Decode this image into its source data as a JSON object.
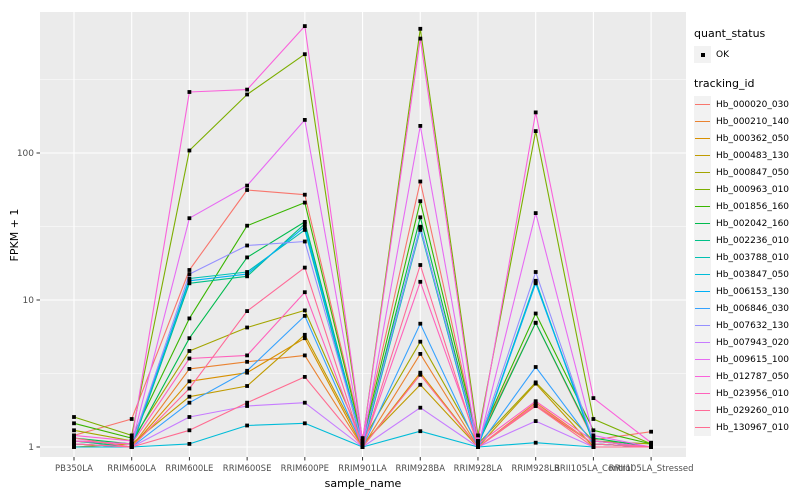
{
  "figure": {
    "background": "#FFFFFF",
    "panel_background": "#EBEBEB",
    "gridline_color": "#FFFFFF",
    "tick_color": "#333333",
    "axis_text_color": "#4D4D4D",
    "point_color": "#000000"
  },
  "chart_data": {
    "type": "line",
    "title": "",
    "xlabel": "sample_name",
    "ylabel": "FPKM + 1",
    "y_scale": "log10",
    "ylim": [
      1,
      750
    ],
    "y_tick_labels": [
      "1",
      "10",
      "100"
    ],
    "y_tick_values": [
      1,
      10,
      100
    ],
    "y_minor_tick_values": [
      3.162,
      31.62,
      316.2
    ],
    "grid": "white major+minor gridlines on grey panel",
    "legend_position": "right",
    "marker": "small black square (quant_status OK)",
    "categories": [
      "PB350LA",
      "RRIM600LA",
      "RRIM600LE",
      "RRIM600SE",
      "RRIM600PE",
      "RRIM901LA",
      "RRIM928BA",
      "RRIM928LA",
      "RRIM928LB",
      "RRII105LA_Control",
      "RRII105LA_Stressed"
    ],
    "series": [
      {
        "name": "Hb_000020_030",
        "color": "#F8766D",
        "values": [
          1.2,
          1.55,
          16,
          56,
          52,
          1.15,
          64,
          1.1,
          7,
          1.12,
          1.27
        ]
      },
      {
        "name": "Hb_000210_140",
        "color": "#EA8331",
        "values": [
          1.05,
          1.0,
          3.4,
          3.8,
          4.2,
          1.0,
          4.3,
          1.0,
          2.0,
          1.05,
          1.0
        ]
      },
      {
        "name": "Hb_000362_050",
        "color": "#D89000",
        "values": [
          1.1,
          1.0,
          2.8,
          3.2,
          5.5,
          1.0,
          3.2,
          1.0,
          1.9,
          1.05,
          1.0
        ]
      },
      {
        "name": "Hb_000483_130",
        "color": "#C09B00",
        "values": [
          1.0,
          1.05,
          2.2,
          2.6,
          5.8,
          1.05,
          2.65,
          1.0,
          2.7,
          1.0,
          1.0
        ]
      },
      {
        "name": "Hb_000847_050",
        "color": "#A3A500",
        "values": [
          1.3,
          1.1,
          4.5,
          6.5,
          8.5,
          1.1,
          5.2,
          1.05,
          2.75,
          1.1,
          1.05
        ]
      },
      {
        "name": "Hb_000963_010",
        "color": "#7CAE00",
        "values": [
          1.6,
          1.2,
          104,
          250,
          470,
          1.1,
          700,
          1.2,
          141,
          1.55,
          1.05
        ]
      },
      {
        "name": "Hb_001856_160",
        "color": "#39B600",
        "values": [
          1.45,
          1.15,
          7.5,
          32,
          46,
          1.1,
          47,
          1.1,
          8.1,
          1.3,
          1.05
        ]
      },
      {
        "name": "Hb_002042_160",
        "color": "#00BB4E",
        "values": [
          1.15,
          1.05,
          5.5,
          19.5,
          34,
          1.05,
          36.5,
          1.05,
          7.0,
          1.15,
          1.0
        ]
      },
      {
        "name": "Hb_002236_010",
        "color": "#00C087",
        "values": [
          1.1,
          1.0,
          13,
          14.5,
          33,
          1.0,
          31,
          1.0,
          13.2,
          1.1,
          1.0
        ]
      },
      {
        "name": "Hb_003788_010",
        "color": "#00C0B2",
        "values": [
          1.05,
          1.0,
          14,
          15.5,
          30,
          1.0,
          30,
          1.0,
          13.5,
          1.05,
          1.0
        ]
      },
      {
        "name": "Hb_003847_050",
        "color": "#00BCD8",
        "values": [
          1.0,
          1.0,
          1.05,
          1.4,
          1.45,
          1.0,
          1.28,
          1.0,
          1.07,
          1.0,
          1.0
        ]
      },
      {
        "name": "Hb_006153_130",
        "color": "#00B0F6",
        "values": [
          1.1,
          1.05,
          13.5,
          15,
          31.5,
          1.05,
          31.5,
          1.0,
          13,
          1.1,
          1.0
        ]
      },
      {
        "name": "Hb_006846_030",
        "color": "#35A2FF",
        "values": [
          1.05,
          1.0,
          2.0,
          3.3,
          7.8,
          1.0,
          6.9,
          1.0,
          3.5,
          1.05,
          1.0
        ]
      },
      {
        "name": "Hb_007632_130",
        "color": "#9590FF",
        "values": [
          1.1,
          1.05,
          15,
          23.5,
          25,
          1.05,
          31,
          1.05,
          15.5,
          1.1,
          1.0
        ]
      },
      {
        "name": "Hb_007943_020",
        "color": "#C77CFF",
        "values": [
          1.05,
          1.0,
          1.6,
          1.9,
          2.0,
          1.0,
          1.85,
          1.0,
          1.5,
          1.0,
          1.0
        ]
      },
      {
        "name": "Hb_009615_100",
        "color": "#E76BF3",
        "values": [
          1.1,
          1.05,
          36,
          60,
          168,
          1.05,
          153,
          1.0,
          39,
          1.2,
          1.0
        ]
      },
      {
        "name": "Hb_012787_050",
        "color": "#FA62DB",
        "values": [
          1.2,
          1.1,
          260,
          270,
          730,
          1.1,
          600,
          1.1,
          189,
          2.15,
          1.07
        ]
      },
      {
        "name": "Hb_023956_010",
        "color": "#FF62BC",
        "values": [
          1.1,
          1.05,
          4.0,
          4.2,
          11.3,
          1.0,
          13.3,
          1.05,
          2.05,
          1.1,
          1.0
        ]
      },
      {
        "name": "Hb_029260_010",
        "color": "#FF6A98",
        "values": [
          1.05,
          1.0,
          2.5,
          8.4,
          16.6,
          1.0,
          17.3,
          1.0,
          1.95,
          1.05,
          1.0
        ]
      },
      {
        "name": "Hb_130967_010",
        "color": "#FF6C91",
        "values": [
          1.15,
          1.0,
          1.3,
          2.0,
          3.0,
          1.0,
          3.1,
          1.0,
          1.9,
          1.0,
          1.0
        ]
      }
    ],
    "legends": {
      "quant_status": {
        "title": "quant_status",
        "entries": [
          {
            "label": "OK",
            "symbol": "point",
            "color": "#000000"
          }
        ]
      },
      "tracking_id": {
        "title": "tracking_id"
      }
    }
  }
}
